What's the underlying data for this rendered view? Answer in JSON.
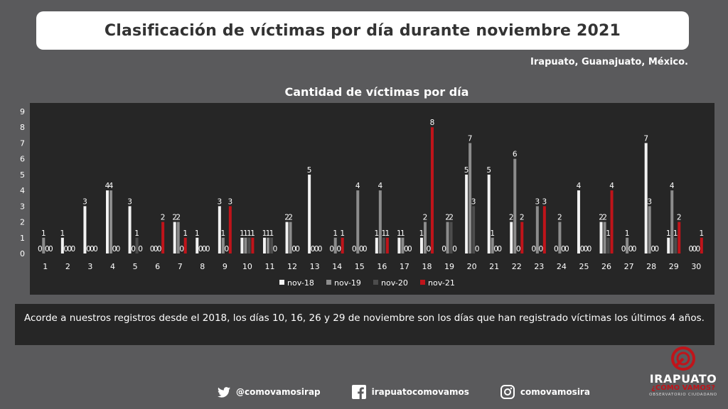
{
  "header": {
    "title": "Clasificación de víctimas por día durante noviembre 2021",
    "location": "Irapuato, Guanajuato, México."
  },
  "chart_data": {
    "type": "bar",
    "title": "Cantidad de víctimas por día",
    "categories": [
      "1",
      "2",
      "3",
      "4",
      "5",
      "6",
      "7",
      "8",
      "9",
      "10",
      "11",
      "12",
      "13",
      "14",
      "15",
      "16",
      "17",
      "18",
      "19",
      "20",
      "21",
      "22",
      "23",
      "24",
      "25",
      "26",
      "27",
      "28",
      "29",
      "30"
    ],
    "series": [
      {
        "name": "nov-18",
        "color": "#f2f2f2",
        "values": [
          0,
          1,
          3,
          4,
          3,
          0,
          2,
          1,
          3,
          1,
          1,
          2,
          5,
          0,
          0,
          1,
          1,
          1,
          0,
          5,
          5,
          2,
          0,
          0,
          4,
          2,
          0,
          7,
          1,
          0
        ]
      },
      {
        "name": "nov-19",
        "color": "#8c8c8c",
        "values": [
          1,
          0,
          0,
          4,
          0,
          0,
          2,
          0,
          1,
          1,
          1,
          2,
          0,
          1,
          4,
          4,
          1,
          2,
          2,
          7,
          1,
          6,
          3,
          2,
          0,
          2,
          1,
          3,
          4,
          0
        ]
      },
      {
        "name": "nov-20",
        "color": "#4d4d4d",
        "values": [
          0,
          0,
          0,
          0,
          1,
          0,
          0,
          0,
          0,
          1,
          1,
          0,
          0,
          0,
          0,
          1,
          0,
          0,
          2,
          3,
          0,
          0,
          0,
          0,
          0,
          1,
          0,
          0,
          1,
          0
        ]
      },
      {
        "name": "nov-21",
        "color": "#c0141a",
        "values": [
          0,
          0,
          0,
          0,
          0,
          2,
          1,
          0,
          3,
          1,
          0,
          0,
          0,
          1,
          0,
          1,
          0,
          8,
          0,
          0,
          0,
          2,
          3,
          0,
          0,
          4,
          0,
          0,
          2,
          1
        ]
      }
    ],
    "ylim": [
      0,
      9
    ],
    "yticks": [
      "0",
      "1",
      "2",
      "3",
      "4",
      "5",
      "6",
      "7",
      "8",
      "9"
    ],
    "xlabel": "",
    "ylabel": "",
    "legend_position": "bottom",
    "grid": false
  },
  "note": {
    "text": "Acorde a nuestros registros desde el 2018, los días 10, 16, 26 y 29 de noviembre son los días que han registrado víctimas los últimos 4 años."
  },
  "footer": {
    "twitter": "@comovamosirap",
    "facebook": "irapuatocomovamos",
    "instagram": "comovamosira"
  },
  "logo": {
    "line1": "IRAPUATO",
    "line2": "¿CÓMO VAMOS?",
    "line3": "OBSERVATORIO CIUDADANO"
  }
}
